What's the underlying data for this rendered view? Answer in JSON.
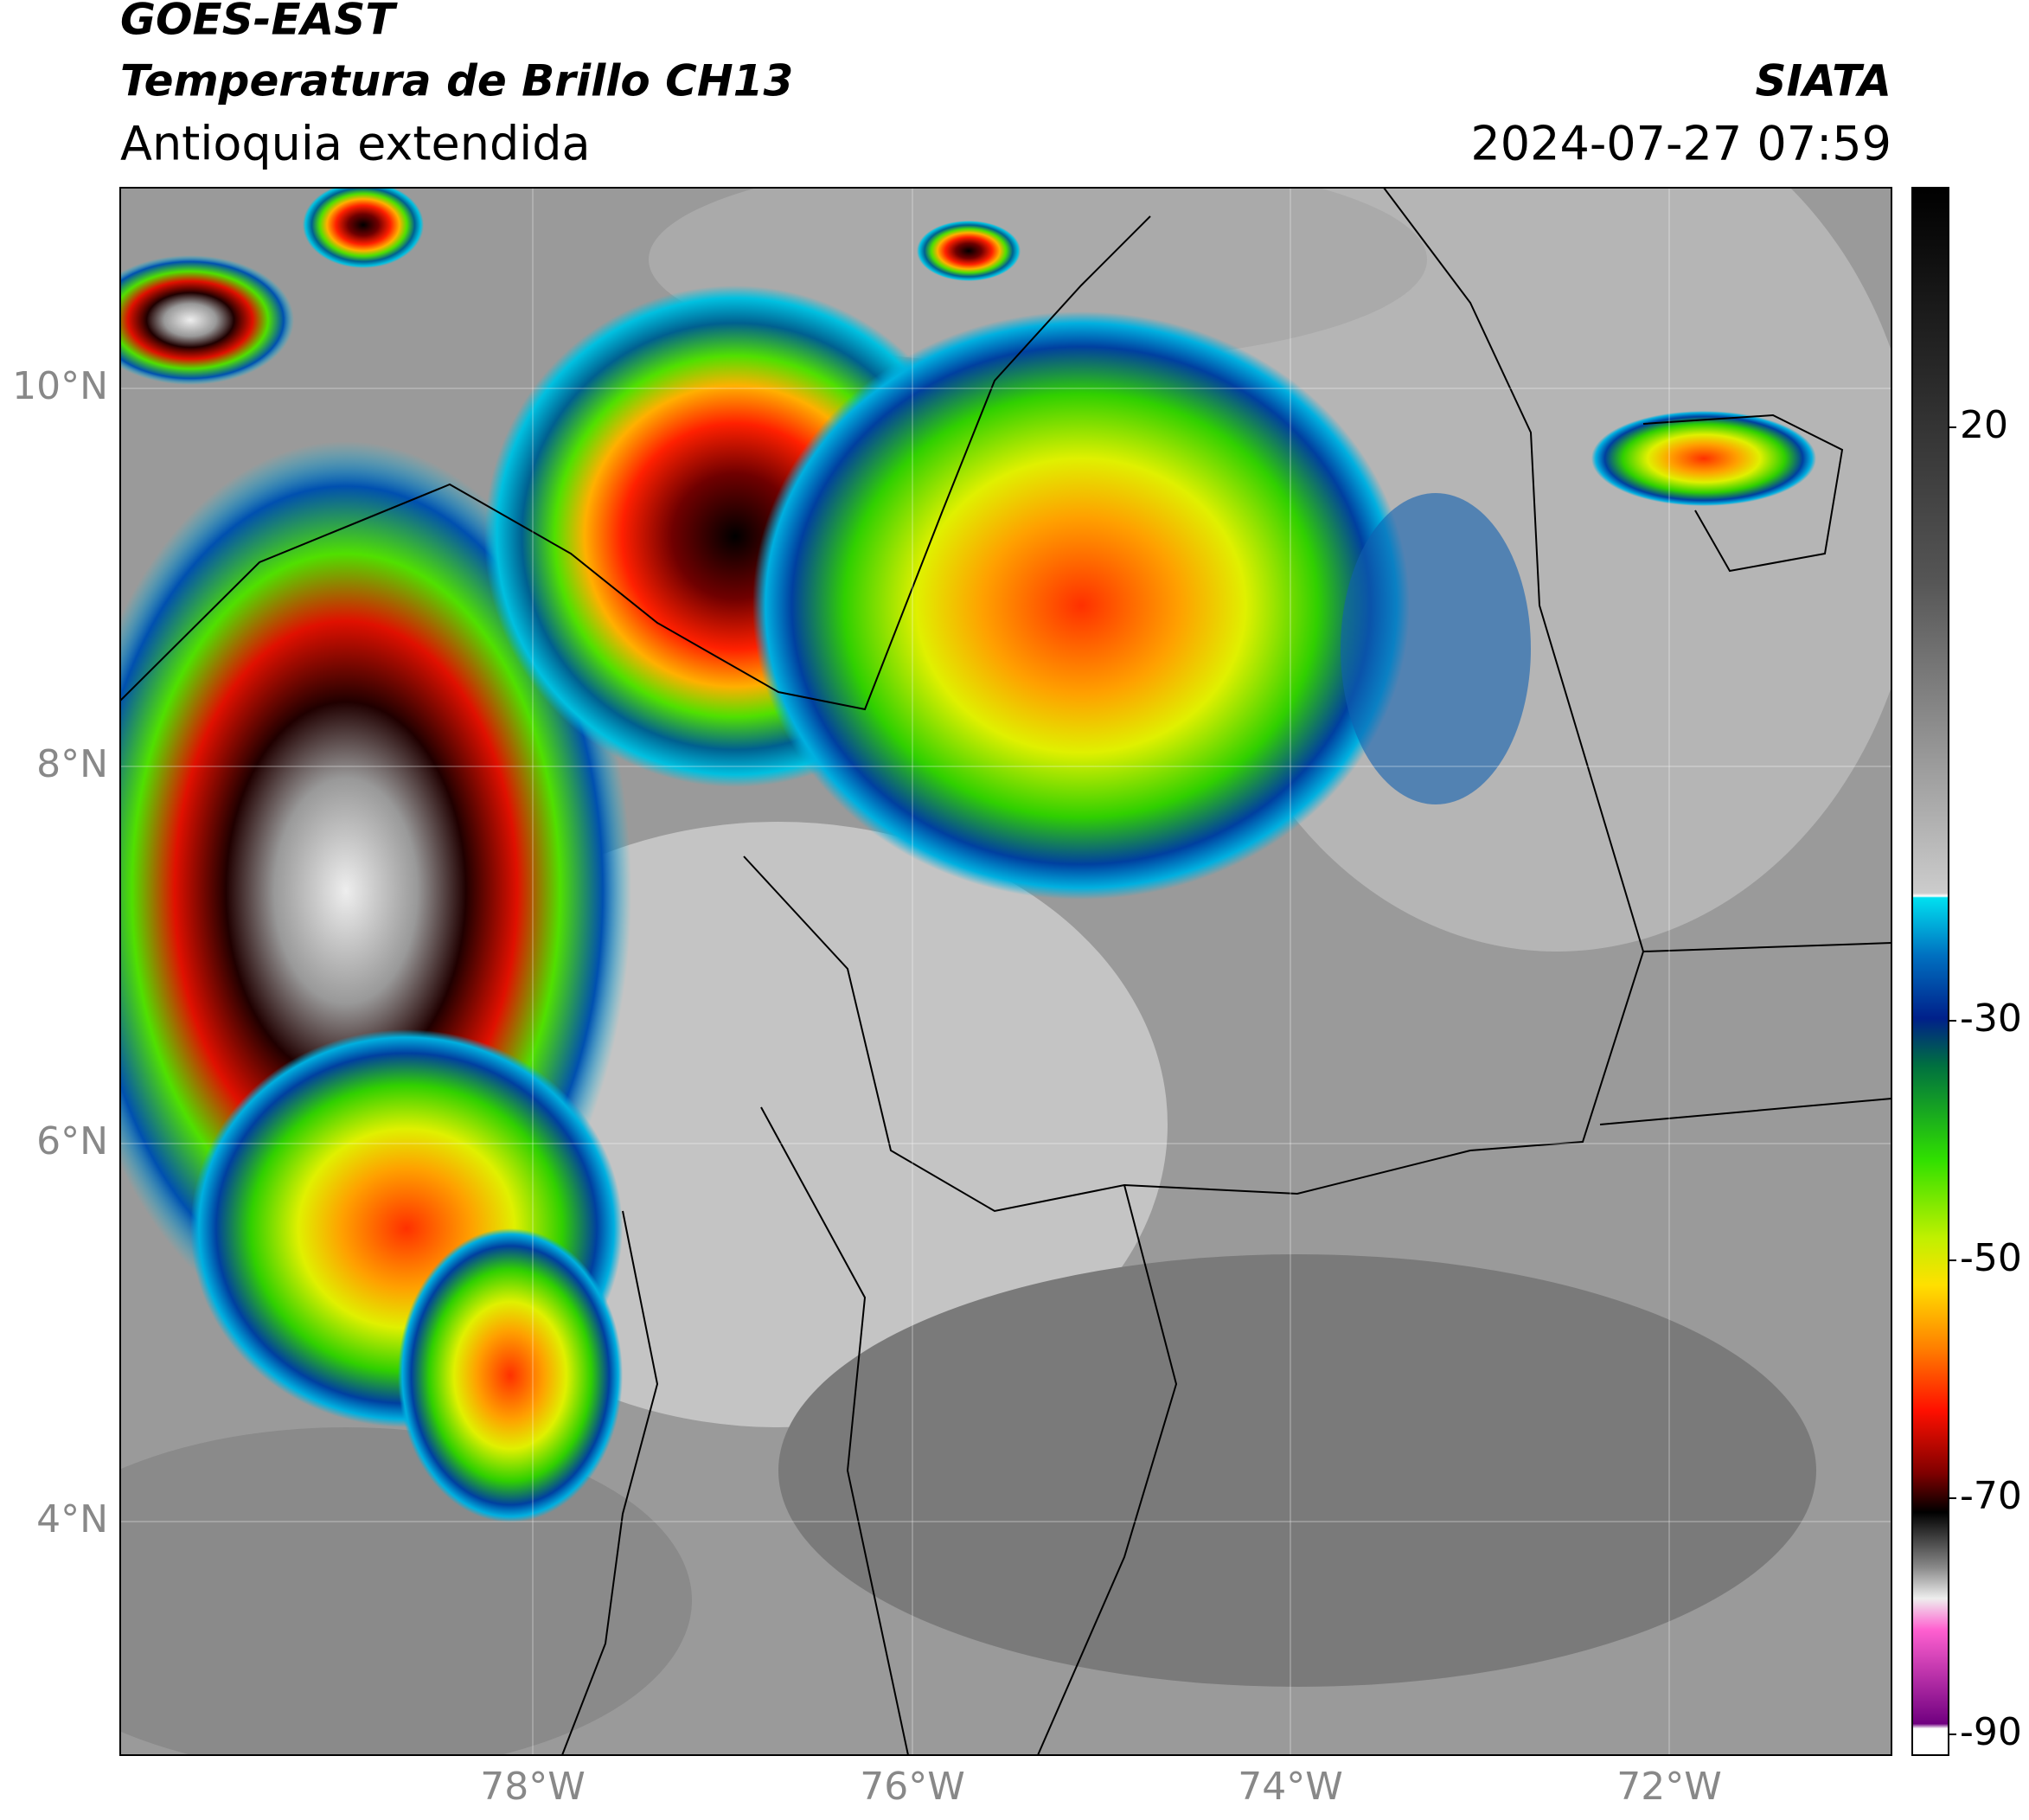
{
  "header": {
    "satellite": "GOES-EAST",
    "product": "Temperatura de Brillo CH13",
    "region": "Antioquia extendida",
    "source": "SIATA",
    "datetime": "2024-07-27 07:59"
  },
  "map": {
    "lat_ticks": [
      "10°N",
      "8°N",
      "6°N",
      "4°N"
    ],
    "lon_ticks": [
      "78°W",
      "76°W",
      "74°W",
      "72°W"
    ]
  },
  "colorbar": {
    "ticks": [
      "20",
      "-30",
      "-50",
      "-70",
      "-90"
    ]
  }
}
